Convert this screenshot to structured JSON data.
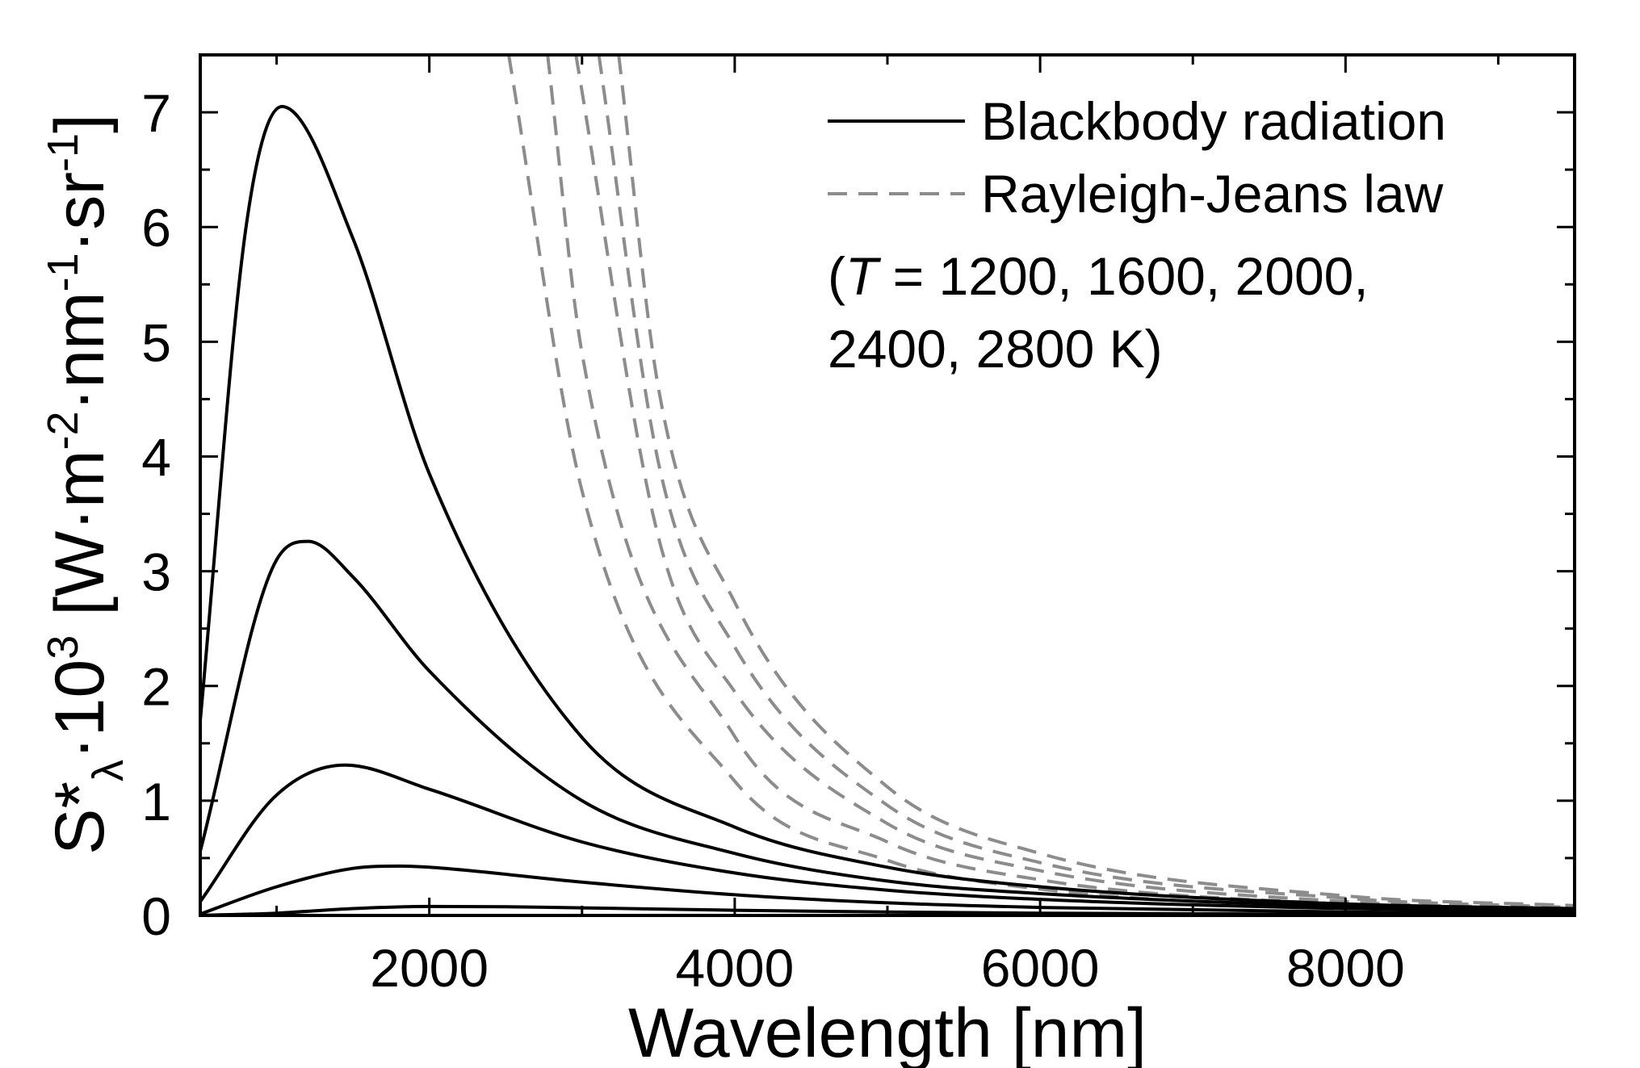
{
  "chart_data": {
    "type": "line",
    "xlabel": "Wavelength [nm]",
    "ylabel": {
      "base": "S*",
      "sub": "λ",
      "mid1": "·10",
      "sup1": "3",
      "mid2": " [W·m",
      "sup2": "-2",
      "mid3": "·nm",
      "sup3": "-1",
      "mid4": "·sr",
      "sup4": "-1",
      "end": "]"
    },
    "xlim": [
      500,
      9500
    ],
    "ylim": [
      0,
      7.5
    ],
    "x_ticks": [
      2000,
      4000,
      6000,
      8000
    ],
    "x_tick_labels": [
      "2000",
      "4000",
      "6000",
      "8000"
    ],
    "y_ticks": [
      0,
      1,
      2,
      3,
      4,
      5,
      6,
      7
    ],
    "y_tick_labels": [
      "0",
      "1",
      "2",
      "3",
      "4",
      "5",
      "6",
      "7"
    ],
    "temperatures_K": [
      1200,
      1600,
      2000,
      2400,
      2800
    ],
    "legend": {
      "position": "top-right",
      "entries": [
        {
          "label": "Blackbody radiation",
          "style": "solid",
          "color": "#000000"
        },
        {
          "label": "Rayleigh-Jeans law",
          "style": "dashed",
          "color": "#8c8c8c"
        }
      ],
      "note_line1_prefix": "(",
      "note_line1_var": "T",
      "note_line1_rest": " = 1200, 1600, 2000,",
      "note_line2": "2400, 2800 K)"
    },
    "grid": false,
    "colors": {
      "blackbody": "#000000",
      "rayleigh_jeans": "#8c8c8c"
    },
    "series": [
      {
        "group": "Blackbody radiation",
        "T": 1200,
        "x": [
          500,
          1000,
          1500,
          2000,
          2500,
          3000,
          4000,
          5000,
          6000,
          8000,
          9500
        ],
        "y": [
          0.0004,
          0.02,
          0.06,
          0.078,
          0.075,
          0.066,
          0.045,
          0.03,
          0.02,
          0.009,
          0.006
        ]
      },
      {
        "group": "Blackbody radiation",
        "T": 1600,
        "x": [
          500,
          1000,
          1500,
          1810,
          2000,
          3000,
          4000,
          5000,
          6000,
          8000,
          9500
        ],
        "y": [
          0.012,
          0.25,
          0.41,
          0.43,
          0.42,
          0.29,
          0.18,
          0.11,
          0.07,
          0.03,
          0.017
        ]
      },
      {
        "group": "Blackbody radiation",
        "T": 2000,
        "x": [
          500,
          1000,
          1449,
          2000,
          3000,
          4000,
          5000,
          6000,
          8000,
          9500
        ],
        "y": [
          0.12,
          1.05,
          1.31,
          1.1,
          0.64,
          0.37,
          0.22,
          0.14,
          0.06,
          0.035
        ]
      },
      {
        "group": "Blackbody radiation",
        "T": 2400,
        "x": [
          500,
          1000,
          1207,
          1500,
          2000,
          3000,
          4000,
          5000,
          6000,
          8000,
          9500
        ],
        "y": [
          0.56,
          3.1,
          3.26,
          2.95,
          2.13,
          1.0,
          0.54,
          0.3,
          0.19,
          0.08,
          0.047
        ]
      },
      {
        "group": "Blackbody radiation",
        "T": 2800,
        "x": [
          500,
          800,
          1035,
          1500,
          2000,
          3000,
          4000,
          5000,
          6000,
          8000,
          9500
        ],
        "y": [
          1.7,
          6.0,
          7.05,
          5.9,
          3.85,
          1.55,
          0.77,
          0.42,
          0.25,
          0.1,
          0.06
        ]
      },
      {
        "group": "Rayleigh-Jeans law",
        "T": 1200,
        "x": [
          2520,
          3000,
          4000,
          5000,
          6000,
          8000,
          9500
        ],
        "y": [
          7.5,
          3.7,
          1.17,
          0.48,
          0.23,
          0.073,
          0.037
        ]
      },
      {
        "group": "Rayleigh-Jeans law",
        "T": 1600,
        "x": [
          2775,
          3000,
          4000,
          5000,
          6000,
          8000,
          9500
        ],
        "y": [
          7.5,
          4.9,
          1.56,
          0.64,
          0.31,
          0.098,
          0.049
        ]
      },
      {
        "group": "Rayleigh-Jeans law",
        "T": 2000,
        "x": [
          2960,
          3500,
          4000,
          5000,
          6000,
          8000,
          9500
        ],
        "y": [
          7.5,
          3.3,
          1.95,
          0.8,
          0.39,
          0.12,
          0.06
        ]
      },
      {
        "group": "Rayleigh-Jeans law",
        "T": 2400,
        "x": [
          3110,
          3500,
          4000,
          5000,
          6000,
          8000,
          9500
        ],
        "y": [
          7.5,
          3.95,
          2.34,
          0.96,
          0.46,
          0.15,
          0.07
        ]
      },
      {
        "group": "Rayleigh-Jeans law",
        "T": 2800,
        "x": [
          3240,
          3500,
          4000,
          5000,
          6000,
          8000,
          9500
        ],
        "y": [
          7.5,
          4.6,
          2.73,
          1.12,
          0.54,
          0.17,
          0.085
        ]
      }
    ]
  }
}
